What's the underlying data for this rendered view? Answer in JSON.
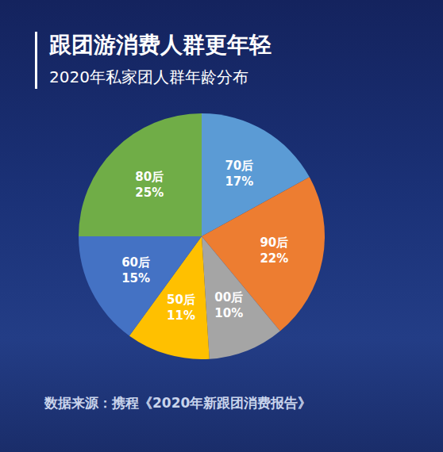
{
  "chart_data": {
    "type": "pie",
    "title": "跟团游消费人群更年轻",
    "subtitle": "2020年私家团人群年龄分布",
    "source": "数据来源：携程《2020年新跟团消费报告》",
    "categories": [
      "70后",
      "90后",
      "00后",
      "50后",
      "60后",
      "80后"
    ],
    "values": [
      17,
      22,
      10,
      11,
      15,
      25
    ],
    "value_labels": [
      "17%",
      "22%",
      "10%",
      "11%",
      "15%",
      "25%"
    ],
    "colors": [
      "#5b9bd5",
      "#ed7d31",
      "#a5a5a5",
      "#ffc000",
      "#4472c4",
      "#70ad47"
    ],
    "data_labels": true
  }
}
